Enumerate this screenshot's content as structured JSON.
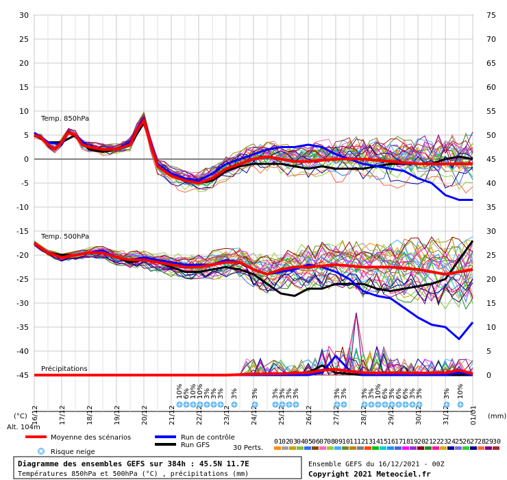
{
  "chart_data": {
    "type": "line",
    "title": "Diagramme des ensembles GEFS sur 384h : 45.5N 11.7E",
    "subtitle": "Températures 850hPa et 500hPa (°C) , précipitations (mm)",
    "run_info": "Ensemble GEFS du 16/12/2021 - 00Z",
    "copyright": "Copyright 2021 Meteociel.fr",
    "altitude": "Alt. 104m",
    "left_axis_unit": "(°C)",
    "right_axis_unit": "(mm)",
    "left_ticks": [
      30,
      25,
      20,
      15,
      10,
      5,
      0,
      -5,
      -10,
      -15,
      -20,
      -25,
      -30,
      -35,
      -40,
      -45
    ],
    "right_ticks": [
      75,
      70,
      65,
      60,
      55,
      50,
      45,
      40,
      35,
      30,
      25,
      20,
      15,
      10,
      5,
      0
    ],
    "x_dates": [
      "16/12",
      "17/12",
      "18/12",
      "19/12",
      "20/12",
      "21/12",
      "22/12",
      "23/12",
      "24/12",
      "25/12",
      "26/12",
      "27/12",
      "28/12",
      "29/12",
      "30/12",
      "31/12",
      "01/01"
    ],
    "panel_labels": {
      "t850": "Temp. 850hPa",
      "t500": "Temp. 500hPa",
      "precip": "Précipitations"
    },
    "legend": {
      "mean": "Moyenne des scénarios",
      "control": "Run de contrôle",
      "gfs": "Run GFS",
      "snow": "Risque neige",
      "perts": "30 Perts."
    },
    "member_codes": [
      "01",
      "02",
      "03",
      "04",
      "05",
      "06",
      "07",
      "08",
      "09",
      "10",
      "11",
      "12",
      "13",
      "14",
      "15",
      "16",
      "17",
      "18",
      "19",
      "20",
      "21",
      "22",
      "23",
      "24",
      "25",
      "26",
      "27",
      "28",
      "29",
      "30"
    ],
    "member_colors": [
      "#ff8c00",
      "#a0a0a0",
      "#c8a000",
      "#7fbf3f",
      "#2f6fff",
      "#8b4513",
      "#ff69b4",
      "#9acd32",
      "#40b0ff",
      "#6b8e23",
      "#b8860b",
      "#808080",
      "#ff4500",
      "#00c000",
      "#00ced1",
      "#1e90ff",
      "#4169e1",
      "#ff00ff",
      "#9932cc",
      "#8b0000",
      "#228b22",
      "#ff1493",
      "#daa520",
      "#00008b",
      "#7b68ee",
      "#32cd32",
      "#000080",
      "#ff6347",
      "#800080",
      "#a52a2a"
    ],
    "snow_risk": [
      {
        "day": 5.3,
        "pct": "10%"
      },
      {
        "day": 5.55,
        "pct": "6%"
      },
      {
        "day": 5.8,
        "pct": "10%"
      },
      {
        "day": 6.05,
        "pct": "10%"
      },
      {
        "day": 6.3,
        "pct": "3%"
      },
      {
        "day": 6.55,
        "pct": "3%"
      },
      {
        "day": 6.8,
        "pct": "3%"
      },
      {
        "day": 7.3,
        "pct": "3%"
      },
      {
        "day": 8.05,
        "pct": "3%"
      },
      {
        "day": 8.8,
        "pct": "3%"
      },
      {
        "day": 9.05,
        "pct": "3%"
      },
      {
        "day": 9.3,
        "pct": "3%"
      },
      {
        "day": 9.55,
        "pct": "3%"
      },
      {
        "day": 11.05,
        "pct": "3%"
      },
      {
        "day": 11.3,
        "pct": "3%"
      },
      {
        "day": 12.05,
        "pct": "3%"
      },
      {
        "day": 12.3,
        "pct": "3%"
      },
      {
        "day": 12.55,
        "pct": "10%"
      },
      {
        "day": 12.8,
        "pct": "6%"
      },
      {
        "day": 13.05,
        "pct": "3%"
      },
      {
        "day": 13.3,
        "pct": "6%"
      },
      {
        "day": 13.55,
        "pct": "6%"
      },
      {
        "day": 13.8,
        "pct": "3%"
      },
      {
        "day": 14.05,
        "pct": "3%"
      },
      {
        "day": 15.05,
        "pct": "3%"
      },
      {
        "day": 15.55,
        "pct": "10%"
      }
    ],
    "t850": {
      "mean": [
        [
          0,
          5
        ],
        [
          0.25,
          4.5
        ],
        [
          0.5,
          3
        ],
        [
          0.75,
          2
        ],
        [
          1,
          3.5
        ],
        [
          1.25,
          5.5
        ],
        [
          1.5,
          5
        ],
        [
          1.75,
          3
        ],
        [
          2,
          2.5
        ],
        [
          2.5,
          2
        ],
        [
          3,
          2
        ],
        [
          3.5,
          3
        ],
        [
          3.75,
          6
        ],
        [
          4,
          8
        ],
        [
          4.25,
          3
        ],
        [
          4.5,
          -1.5
        ],
        [
          5,
          -3.5
        ],
        [
          5.5,
          -4.5
        ],
        [
          6,
          -5
        ],
        [
          6.5,
          -4
        ],
        [
          7,
          -2
        ],
        [
          7.5,
          -1
        ],
        [
          8,
          0
        ],
        [
          8.5,
          0.5
        ],
        [
          9,
          0
        ],
        [
          9.5,
          -0.5
        ],
        [
          10,
          -0.5
        ],
        [
          11,
          0
        ],
        [
          12,
          0
        ],
        [
          13,
          -0.5
        ],
        [
          14,
          -1
        ],
        [
          15,
          -1
        ],
        [
          16,
          -1
        ]
      ],
      "control": [
        [
          0,
          5.5
        ],
        [
          0.5,
          3.5
        ],
        [
          1,
          3
        ],
        [
          1.25,
          5.5
        ],
        [
          1.5,
          5
        ],
        [
          2,
          2.5
        ],
        [
          2.5,
          2
        ],
        [
          3,
          2
        ],
        [
          3.5,
          3.5
        ],
        [
          4,
          8
        ],
        [
          4.5,
          -1
        ],
        [
          5,
          -3
        ],
        [
          5.5,
          -4
        ],
        [
          6,
          -4.5
        ],
        [
          6.5,
          -3
        ],
        [
          7,
          -1
        ],
        [
          7.5,
          0
        ],
        [
          8,
          1
        ],
        [
          8.5,
          2
        ],
        [
          9,
          2.5
        ],
        [
          9.5,
          2.5
        ],
        [
          10,
          3
        ],
        [
          10.5,
          2.5
        ],
        [
          11,
          1
        ],
        [
          11.5,
          0
        ],
        [
          12,
          -1
        ],
        [
          13,
          -2
        ],
        [
          13.5,
          -2.5
        ],
        [
          14,
          -4
        ],
        [
          14.5,
          -5
        ],
        [
          15,
          -7.5
        ],
        [
          15.5,
          -8.5
        ],
        [
          16,
          -8.5
        ]
      ],
      "gfs": [
        [
          0,
          5
        ],
        [
          0.5,
          3.5
        ],
        [
          1,
          3.5
        ],
        [
          1.5,
          5
        ],
        [
          2,
          2
        ],
        [
          2.5,
          1.5
        ],
        [
          3,
          2
        ],
        [
          3.5,
          3
        ],
        [
          4,
          7.5
        ],
        [
          4.5,
          -1
        ],
        [
          5,
          -3.5
        ],
        [
          5.5,
          -4.5
        ],
        [
          6,
          -5
        ],
        [
          6.5,
          -4.5
        ],
        [
          7,
          -2.5
        ],
        [
          7.5,
          -1.5
        ],
        [
          8,
          -1
        ],
        [
          8.5,
          -1
        ],
        [
          9,
          -1
        ],
        [
          9.5,
          -1.5
        ],
        [
          10,
          -2
        ],
        [
          10.5,
          -1.5
        ],
        [
          11,
          -2
        ],
        [
          11.5,
          -2
        ],
        [
          12,
          -2
        ],
        [
          12.5,
          -1.5
        ],
        [
          13,
          -1
        ],
        [
          13.5,
          -1
        ],
        [
          14,
          -1
        ],
        [
          14.5,
          -1
        ],
        [
          15,
          0
        ],
        [
          15.5,
          0.5
        ],
        [
          16,
          0
        ]
      ]
    },
    "t500": {
      "mean": [
        [
          0,
          -17.5
        ],
        [
          0.5,
          -19.5
        ],
        [
          1,
          -20.5
        ],
        [
          1.5,
          -20
        ],
        [
          2,
          -19.5
        ],
        [
          2.5,
          -19.5
        ],
        [
          3,
          -20.5
        ],
        [
          3.5,
          -21
        ],
        [
          4,
          -21
        ],
        [
          4.5,
          -21.5
        ],
        [
          5,
          -22
        ],
        [
          5.5,
          -22.5
        ],
        [
          6,
          -22.5
        ],
        [
          6.5,
          -22
        ],
        [
          7,
          -21.5
        ],
        [
          7.5,
          -21.5
        ],
        [
          8,
          -23
        ],
        [
          8.5,
          -24
        ],
        [
          9,
          -23
        ],
        [
          9.5,
          -22.5
        ],
        [
          10,
          -22.5
        ],
        [
          11,
          -22
        ],
        [
          12,
          -22.5
        ],
        [
          13,
          -22.5
        ],
        [
          14,
          -23
        ],
        [
          14.5,
          -23.5
        ],
        [
          15,
          -24
        ],
        [
          15.5,
          -23.5
        ],
        [
          16,
          -23
        ]
      ],
      "control": [
        [
          0,
          -17.5
        ],
        [
          0.5,
          -19.5
        ],
        [
          1,
          -20.5
        ],
        [
          1.5,
          -20
        ],
        [
          2,
          -19.5
        ],
        [
          2.5,
          -19
        ],
        [
          3,
          -20.5
        ],
        [
          3.5,
          -21
        ],
        [
          4,
          -20.5
        ],
        [
          4.5,
          -21
        ],
        [
          5,
          -21.5
        ],
        [
          5.5,
          -22
        ],
        [
          6,
          -22
        ],
        [
          6.5,
          -22
        ],
        [
          7,
          -21
        ],
        [
          7.5,
          -21.5
        ],
        [
          8,
          -23
        ],
        [
          8.5,
          -24
        ],
        [
          9,
          -23.5
        ],
        [
          9.5,
          -23
        ],
        [
          10,
          -22
        ],
        [
          10.5,
          -22.5
        ],
        [
          11,
          -23.5
        ],
        [
          11.5,
          -25
        ],
        [
          12,
          -27.5
        ],
        [
          12.5,
          -28.5
        ],
        [
          13,
          -29
        ],
        [
          13.5,
          -31
        ],
        [
          14,
          -33
        ],
        [
          14.5,
          -34.5
        ],
        [
          15,
          -35
        ],
        [
          15.5,
          -37.5
        ],
        [
          16,
          -34
        ]
      ],
      "gfs": [
        [
          0,
          -17.5
        ],
        [
          0.5,
          -19.5
        ],
        [
          1,
          -20
        ],
        [
          1.5,
          -20
        ],
        [
          2,
          -19.5
        ],
        [
          2.5,
          -19.5
        ],
        [
          3,
          -20.5
        ],
        [
          3.5,
          -21.5
        ],
        [
          4,
          -21
        ],
        [
          4.5,
          -21.5
        ],
        [
          5,
          -22.5
        ],
        [
          5.5,
          -23.5
        ],
        [
          6,
          -23.5
        ],
        [
          6.5,
          -23
        ],
        [
          7,
          -22.5
        ],
        [
          7.5,
          -23
        ],
        [
          8,
          -24
        ],
        [
          8.5,
          -26
        ],
        [
          9,
          -28
        ],
        [
          9.5,
          -28.5
        ],
        [
          10,
          -27
        ],
        [
          10.5,
          -27
        ],
        [
          11,
          -26
        ],
        [
          11.5,
          -26
        ],
        [
          12,
          -26
        ],
        [
          12.5,
          -27
        ],
        [
          13,
          -27.5
        ],
        [
          13.5,
          -27
        ],
        [
          14,
          -26.5
        ],
        [
          14.5,
          -26
        ],
        [
          15,
          -25
        ],
        [
          15.5,
          -21
        ],
        [
          16,
          -17
        ]
      ]
    },
    "precip": {
      "mean": [
        [
          0,
          0
        ],
        [
          5,
          0
        ],
        [
          7,
          0
        ],
        [
          8,
          0.2
        ],
        [
          9,
          0.3
        ],
        [
          10,
          0.5
        ],
        [
          10.5,
          1
        ],
        [
          11,
          1.2
        ],
        [
          11.5,
          0.8
        ],
        [
          12,
          0.5
        ],
        [
          12.5,
          0.4
        ],
        [
          13,
          0.5
        ],
        [
          14,
          0.4
        ],
        [
          15,
          0.5
        ],
        [
          15.5,
          1
        ],
        [
          16,
          0.3
        ]
      ],
      "control": [
        [
          0,
          0
        ],
        [
          10,
          0
        ],
        [
          10.5,
          0.5
        ],
        [
          11,
          4
        ],
        [
          11.5,
          1
        ],
        [
          12,
          0
        ],
        [
          13,
          0
        ],
        [
          14,
          0
        ],
        [
          15,
          0
        ],
        [
          15.5,
          0.5
        ],
        [
          16,
          0
        ]
      ],
      "gfs": [
        [
          0,
          0
        ],
        [
          9,
          0
        ],
        [
          10,
          0.5
        ],
        [
          10.5,
          2
        ],
        [
          11,
          0.5
        ],
        [
          12,
          0
        ],
        [
          13,
          0
        ],
        [
          14,
          0
        ],
        [
          15,
          0
        ],
        [
          16,
          0
        ]
      ]
    },
    "ylim_left": [
      -45,
      30
    ],
    "ylim_right": [
      0,
      75
    ],
    "xlim_days": [
      0,
      16
    ]
  }
}
